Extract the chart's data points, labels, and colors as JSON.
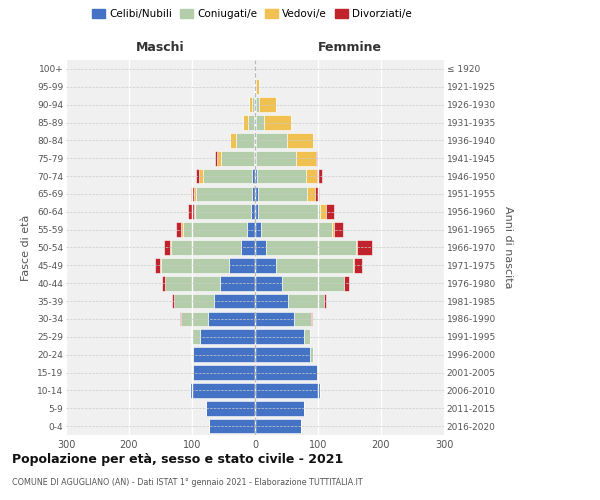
{
  "age_groups": [
    "0-4",
    "5-9",
    "10-14",
    "15-19",
    "20-24",
    "25-29",
    "30-34",
    "35-39",
    "40-44",
    "45-49",
    "50-54",
    "55-59",
    "60-64",
    "65-69",
    "70-74",
    "75-79",
    "80-84",
    "85-89",
    "90-94",
    "95-99",
    "100+"
  ],
  "birth_years": [
    "2016-2020",
    "2011-2015",
    "2006-2010",
    "2001-2005",
    "1996-2000",
    "1991-1995",
    "1986-1990",
    "1981-1985",
    "1976-1980",
    "1971-1975",
    "1966-1970",
    "1961-1965",
    "1956-1960",
    "1951-1955",
    "1946-1950",
    "1941-1945",
    "1936-1940",
    "1931-1935",
    "1926-1930",
    "1921-1925",
    "≤ 1920"
  ],
  "males": {
    "celibe": [
      73,
      78,
      103,
      98,
      98,
      88,
      75,
      65,
      55,
      42,
      22,
      13,
      7,
      5,
      4,
      2,
      2,
      1,
      1,
      0,
      0
    ],
    "coniugato": [
      0,
      0,
      0,
      2,
      4,
      13,
      42,
      63,
      88,
      108,
      112,
      102,
      88,
      88,
      78,
      52,
      28,
      10,
      4,
      1,
      0
    ],
    "vedovo": [
      0,
      0,
      0,
      0,
      0,
      0,
      0,
      0,
      0,
      1,
      1,
      2,
      2,
      4,
      7,
      7,
      9,
      8,
      5,
      1,
      0
    ],
    "divorziato": [
      0,
      0,
      0,
      0,
      0,
      1,
      2,
      3,
      4,
      7,
      9,
      9,
      9,
      4,
      4,
      2,
      0,
      0,
      0,
      0,
      0
    ]
  },
  "females": {
    "nubile": [
      73,
      78,
      103,
      98,
      88,
      78,
      62,
      52,
      43,
      33,
      18,
      10,
      5,
      4,
      3,
      2,
      2,
      1,
      1,
      0,
      0
    ],
    "coniugata": [
      0,
      0,
      0,
      2,
      4,
      9,
      27,
      57,
      98,
      122,
      142,
      112,
      98,
      78,
      78,
      63,
      48,
      14,
      5,
      2,
      0
    ],
    "vedova": [
      0,
      0,
      0,
      0,
      0,
      0,
      0,
      0,
      1,
      2,
      2,
      4,
      9,
      13,
      18,
      32,
      42,
      42,
      28,
      4,
      0
    ],
    "divorziata": [
      0,
      0,
      0,
      0,
      0,
      1,
      2,
      3,
      7,
      13,
      23,
      13,
      13,
      7,
      7,
      2,
      0,
      0,
      0,
      0,
      0
    ]
  },
  "colors": {
    "celibe": "#4472C4",
    "coniugato": "#B3CDAA",
    "vedovo": "#F0C050",
    "divorziato": "#C0232C"
  },
  "xlim": 300,
  "title": "Popolazione per età, sesso e stato civile - 2021",
  "subtitle": "COMUNE DI AGUGLIANO (AN) - Dati ISTAT 1° gennaio 2021 - Elaborazione TUTTITALIA.IT",
  "ylabel_left": "Fasce di età",
  "ylabel_right": "Anni di nascita",
  "xlabel_left": "Maschi",
  "xlabel_right": "Femmine",
  "bg_color": "#f0f0f0",
  "xticks": [
    -300,
    -200,
    -100,
    0,
    100,
    200,
    300
  ]
}
